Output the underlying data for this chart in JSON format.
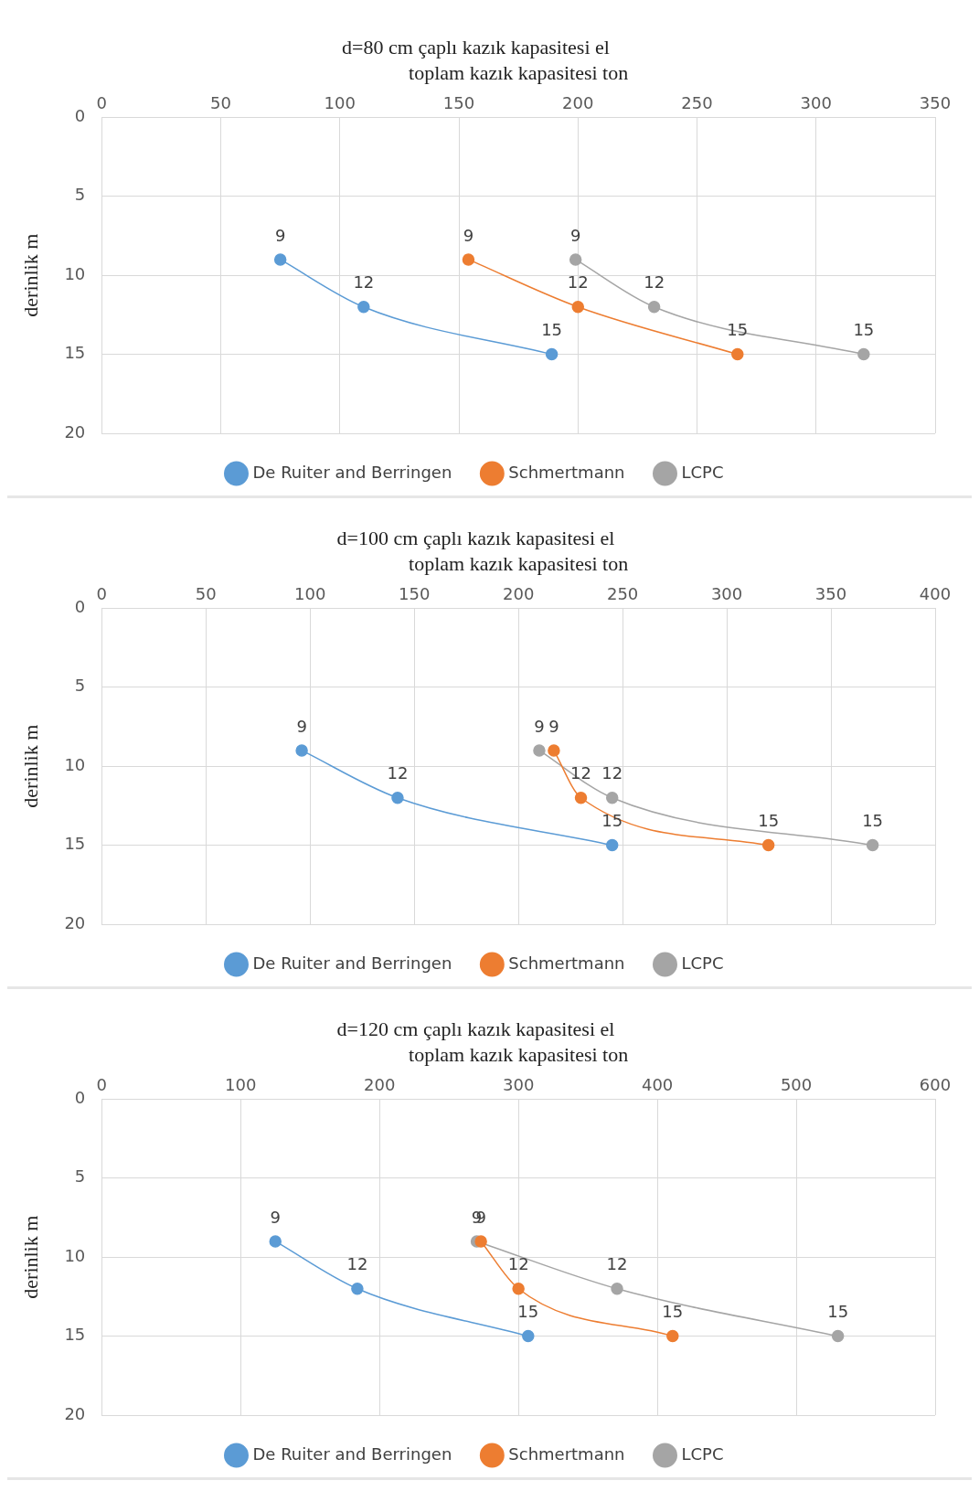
{
  "chart_data": [
    {
      "type": "line",
      "title": "d=80 cm çaplı kazık kapasitesi el",
      "xlabel": "toplam kazık kapasitesi ton",
      "ylabel": "derinlik m",
      "xlim": [
        0,
        350
      ],
      "xticks": [
        0,
        50,
        100,
        150,
        200,
        250,
        300,
        350
      ],
      "ylim": [
        20,
        0
      ],
      "yticks": [
        0,
        5,
        10,
        15,
        20
      ],
      "grid": true,
      "legend": "bottom",
      "marker": "circle",
      "data_labels": true,
      "series": [
        {
          "name": "De Ruiter and Berringen",
          "color": "#5b9bd5",
          "x": [
            75,
            110,
            189
          ],
          "values": [
            9,
            12,
            15
          ]
        },
        {
          "name": "Schmertmann",
          "color": "#ed7d31",
          "x": [
            154,
            200,
            267
          ],
          "values": [
            9,
            12,
            15
          ]
        },
        {
          "name": "LCPC",
          "color": "#a5a5a5",
          "x": [
            199,
            232,
            320
          ],
          "values": [
            9,
            12,
            15
          ]
        }
      ]
    },
    {
      "type": "line",
      "title": "d=100 cm çaplı kazık kapasitesi el",
      "xlabel": "toplam kazık kapasitesi ton",
      "ylabel": "derinlik m",
      "xlim": [
        0,
        400
      ],
      "xticks": [
        0,
        50,
        100,
        150,
        200,
        250,
        300,
        350,
        400
      ],
      "ylim": [
        20,
        0
      ],
      "yticks": [
        0,
        5,
        10,
        15,
        20
      ],
      "grid": true,
      "legend": "bottom",
      "marker": "circle",
      "data_labels": true,
      "series": [
        {
          "name": "De Ruiter and Berringen",
          "color": "#5b9bd5",
          "x": [
            96,
            142,
            245
          ],
          "values": [
            9,
            12,
            15
          ]
        },
        {
          "name": "Schmertmann",
          "color": "#ed7d31",
          "x": [
            217,
            230,
            320
          ],
          "values": [
            9,
            12,
            15
          ]
        },
        {
          "name": "LCPC",
          "color": "#a5a5a5",
          "x": [
            210,
            245,
            370
          ],
          "values": [
            9,
            12,
            15
          ]
        }
      ]
    },
    {
      "type": "line",
      "title": "d=120 cm çaplı kazık kapasitesi el",
      "xlabel": "toplam kazık kapasitesi ton",
      "ylabel": "derinlik m",
      "xlim": [
        0,
        600
      ],
      "xticks": [
        0,
        100,
        200,
        300,
        400,
        500,
        600
      ],
      "ylim": [
        20,
        0
      ],
      "yticks": [
        0,
        5,
        10,
        15,
        20
      ],
      "grid": true,
      "legend": "bottom",
      "marker": "circle",
      "data_labels": true,
      "series": [
        {
          "name": "De Ruiter and Berringen",
          "color": "#5b9bd5",
          "x": [
            125,
            184,
            307
          ],
          "values": [
            9,
            12,
            15
          ]
        },
        {
          "name": "Schmertmann",
          "color": "#ed7d31",
          "x": [
            273,
            300,
            411
          ],
          "values": [
            9,
            12,
            15
          ]
        },
        {
          "name": "LCPC",
          "color": "#a5a5a5",
          "x": [
            270,
            371,
            530
          ],
          "values": [
            9,
            12,
            15
          ]
        }
      ]
    }
  ]
}
